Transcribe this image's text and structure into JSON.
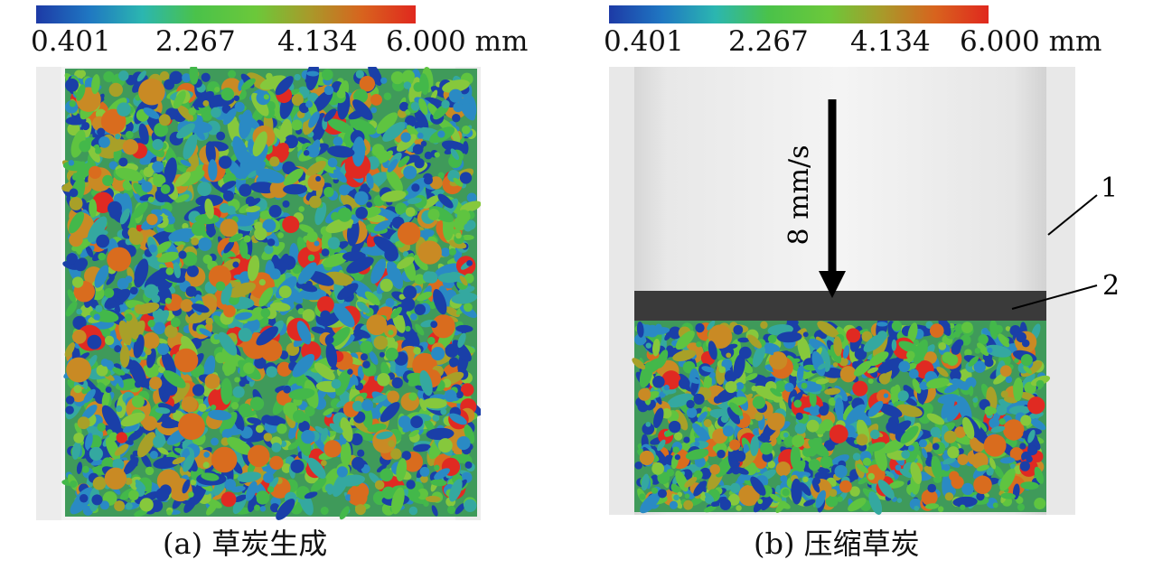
{
  "colormap": {
    "stops": [
      "#1d3aa6",
      "#1f77c2",
      "#2bb6b0",
      "#4ac24a",
      "#6cc83a",
      "#a89a2a",
      "#d8631e",
      "#e0281e"
    ],
    "particle_colors": [
      "#1a3fa8",
      "#2a8ac4",
      "#34a8a0",
      "#43b84a",
      "#5fc440",
      "#86c83c",
      "#a8a028",
      "#c98a24",
      "#d96c1e",
      "#e02a22"
    ]
  },
  "panels": [
    {
      "id": "a",
      "colorbar": {
        "ticks": [
          "0.401",
          "2.267",
          "4.134",
          "6.000 mm"
        ]
      },
      "caption": {
        "label": "(a)",
        "text": "草炭生成"
      }
    },
    {
      "id": "b",
      "colorbar": {
        "ticks": [
          "0.401",
          "2.267",
          "4.134",
          "6.000 mm"
        ]
      },
      "caption": {
        "label": "(b)",
        "text": "压缩草炭"
      },
      "annotations": {
        "speed": "8 mm/s",
        "label_1": "1",
        "label_2": "2"
      }
    }
  ]
}
